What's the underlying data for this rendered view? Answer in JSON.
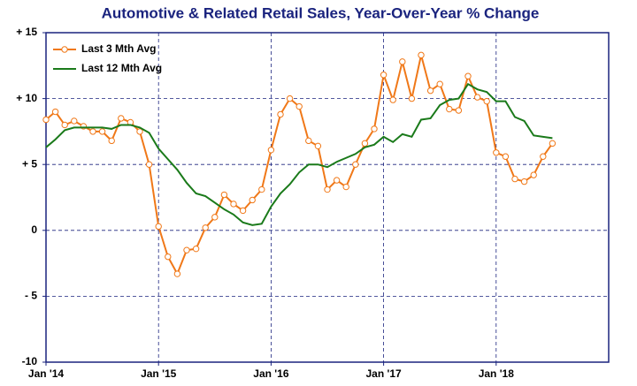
{
  "chart_data": {
    "type": "line",
    "title": "Automotive & Related Retail Sales, Year-Over-Year % Change",
    "x": [
      0,
      1,
      2,
      3,
      4,
      5,
      6,
      7,
      8,
      9,
      10,
      11,
      12,
      13,
      14,
      15,
      16,
      17,
      18,
      19,
      20,
      21,
      22,
      23,
      24,
      25,
      26,
      27,
      28,
      29,
      30,
      31,
      32,
      33,
      34,
      35,
      36,
      37,
      38,
      39,
      40,
      41,
      42,
      43,
      44,
      45,
      46,
      47,
      48,
      49,
      50,
      51,
      52,
      53,
      54
    ],
    "series": [
      {
        "name": "Last 3 Mth Avg",
        "color": "#f07818",
        "markers": true,
        "values": [
          8.4,
          9.0,
          8.0,
          8.3,
          7.9,
          7.5,
          7.5,
          6.8,
          8.5,
          8.2,
          7.5,
          5.0,
          0.3,
          -2.0,
          -3.3,
          -1.5,
          -1.4,
          0.2,
          1.0,
          2.7,
          2.0,
          1.5,
          2.3,
          3.1,
          6.1,
          8.8,
          10.0,
          9.4,
          6.8,
          6.4,
          3.1,
          3.8,
          3.3,
          5.0,
          6.6,
          7.7,
          11.8,
          9.9,
          12.8,
          10.0,
          13.3,
          10.6,
          11.1,
          9.2,
          9.1,
          11.7,
          10.1,
          9.8,
          5.9,
          5.6,
          3.9,
          3.7,
          4.2,
          5.6,
          6.6
        ]
      },
      {
        "name": "Last 12 Mth Avg",
        "color": "#1a7a1a",
        "markers": false,
        "values": [
          6.3,
          6.9,
          7.6,
          7.8,
          7.8,
          7.8,
          7.8,
          7.7,
          8.0,
          8.0,
          7.8,
          7.4,
          6.2,
          5.4,
          4.6,
          3.6,
          2.8,
          2.6,
          2.1,
          1.6,
          1.2,
          0.6,
          0.4,
          0.5,
          1.8,
          2.8,
          3.5,
          4.4,
          5.0,
          5.0,
          4.8,
          5.2,
          5.5,
          5.8,
          6.3,
          6.5,
          7.1,
          6.7,
          7.3,
          7.1,
          8.4,
          8.5,
          9.5,
          9.9,
          10.0,
          11.1,
          10.7,
          10.5,
          9.8,
          9.8,
          8.6,
          8.3,
          7.2,
          7.1,
          7.0
        ]
      }
    ],
    "xlim": [
      0,
      60
    ],
    "xticks": [
      {
        "value": 0,
        "label": "Jan '14"
      },
      {
        "value": 12,
        "label": "Jan '15"
      },
      {
        "value": 24,
        "label": "Jan '16"
      },
      {
        "value": 36,
        "label": "Jan '17"
      },
      {
        "value": 48,
        "label": "Jan '18"
      }
    ],
    "ylim": [
      -10,
      15
    ],
    "yticks": [
      -10,
      {
        "value": -5,
        "label": "- 5"
      },
      0,
      {
        "value": 5,
        "label": "+ 5"
      },
      {
        "value": 10,
        "label": "+ 10"
      },
      {
        "value": 15,
        "label": "+ 15"
      }
    ],
    "grid": true,
    "legend": "top-left"
  }
}
